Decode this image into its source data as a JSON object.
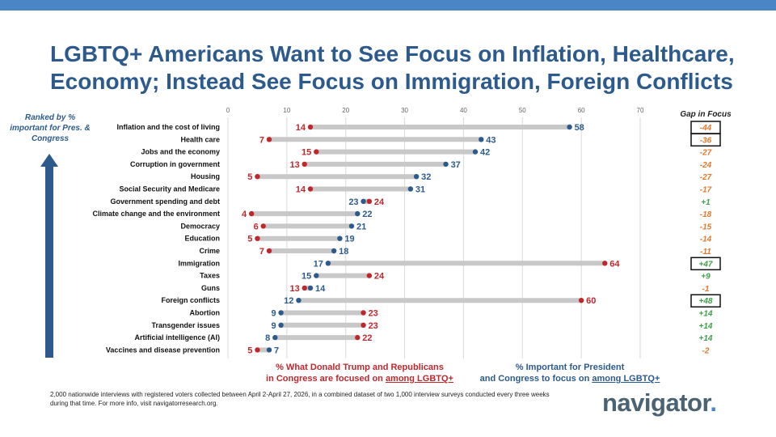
{
  "title": {
    "line1": "LGBTQ+ Americans Want to See Focus on Inflation, Healthcare,",
    "line2": "Economy; Instead See Focus on Immigration, Foreign Conflicts"
  },
  "rank_label": "Ranked by % important for Pres. & Congress",
  "gap_header": "Gap in Focus",
  "legend": {
    "red_prefix": "%  What Donald Trump and Republicans",
    "red_line2_prefix": "in Congress are focused on ",
    "red_line2_underlined": "among LGBTQ+",
    "blue_line1": "% Important for President",
    "blue_line2_prefix": "and Congress to focus on ",
    "blue_line2_underlined": "among LGBTQ+"
  },
  "footnote": "2,000 nationwide interviews with registered voters collected between April 2-April 27, 2026, in a combined dataset of two 1,000 interview surveys conducted every three weeks during that time. For more info, visit navigatorresearch.org.",
  "logo": {
    "text": "navigator",
    "dot": "."
  },
  "colors": {
    "brand_blue": "#2d5a8c",
    "accent_red": "#c0272d",
    "gap_negative": "#e07a2e",
    "gap_positive": "#3fa04a",
    "bar_gray": "#c8c8c8"
  },
  "chart_data": {
    "type": "dumbbell",
    "xlim": [
      0,
      70
    ],
    "xticks": [
      0,
      10,
      20,
      30,
      40,
      50,
      60,
      70
    ],
    "grid": true,
    "series": [
      {
        "name": "% What Donald Trump and Republicans in Congress are focused on among LGBTQ+",
        "color": "#c0272d"
      },
      {
        "name": "% Important for President and Congress to focus on among LGBTQ+",
        "color": "#2d5a8c"
      }
    ],
    "categories": [
      "Inflation and the cost of living",
      "Health care",
      "Jobs and the economy",
      "Corruption in government",
      "Housing",
      "Social Security and Medicare",
      "Government spending and debt",
      "Climate change and the environment",
      "Democracy",
      "Education",
      "Crime",
      "Immigration",
      "Taxes",
      "Guns",
      "Foreign conflicts",
      "Abortion",
      "Transgender issues",
      "Artificial intelligence (AI)",
      "Vaccines and disease prevention"
    ],
    "focused_on": [
      14,
      7,
      15,
      13,
      5,
      14,
      24,
      4,
      6,
      5,
      7,
      64,
      24,
      13,
      60,
      23,
      23,
      22,
      5
    ],
    "important": [
      58,
      43,
      42,
      37,
      32,
      31,
      23,
      22,
      21,
      19,
      18,
      17,
      15,
      14,
      12,
      9,
      9,
      8,
      7
    ],
    "gap": [
      "-44",
      "-36",
      "-27",
      "-24",
      "-27",
      "-17",
      "+1",
      "-18",
      "-15",
      "-14",
      "-11",
      "+47",
      "+9",
      "-1",
      "+48",
      "+14",
      "+14",
      "+14",
      "-2"
    ],
    "boxed_gaps": [
      0,
      1,
      11,
      14
    ]
  }
}
